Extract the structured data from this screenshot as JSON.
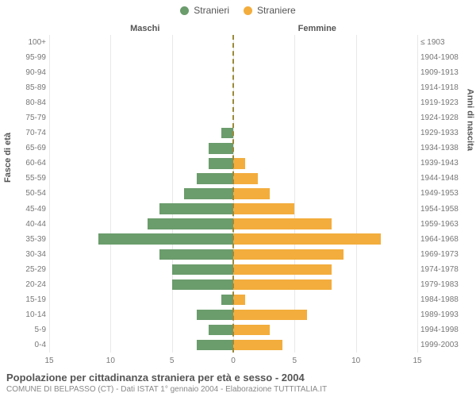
{
  "legend": {
    "male": {
      "label": "Stranieri",
      "color": "#6b9c6c"
    },
    "female": {
      "label": "Straniere",
      "color": "#f3ad3d"
    }
  },
  "side_titles": {
    "male": "Maschi",
    "female": "Femmine"
  },
  "axis_titles": {
    "left": "Fasce di età",
    "right": "Anni di nascita"
  },
  "footer": {
    "title": "Popolazione per cittadinanza straniera per età e sesso - 2004",
    "subtitle": "COMUNE DI BELPASSO (CT) - Dati ISTAT 1° gennaio 2004 - Elaborazione TUTTITALIA.IT"
  },
  "chart": {
    "type": "population-pyramid",
    "xmax": 15,
    "xticks": [
      15,
      10,
      5,
      0,
      5,
      10,
      15
    ],
    "grid_color": "#e8e8e8",
    "center_line_color": "#9a8a3a",
    "background": "#ffffff",
    "rows": [
      {
        "age": "100+",
        "year": "≤ 1903",
        "m": 0,
        "f": 0
      },
      {
        "age": "95-99",
        "year": "1904-1908",
        "m": 0,
        "f": 0
      },
      {
        "age": "90-94",
        "year": "1909-1913",
        "m": 0,
        "f": 0
      },
      {
        "age": "85-89",
        "year": "1914-1918",
        "m": 0,
        "f": 0
      },
      {
        "age": "80-84",
        "year": "1919-1923",
        "m": 0,
        "f": 0
      },
      {
        "age": "75-79",
        "year": "1924-1928",
        "m": 0,
        "f": 0
      },
      {
        "age": "70-74",
        "year": "1929-1933",
        "m": 1,
        "f": 0
      },
      {
        "age": "65-69",
        "year": "1934-1938",
        "m": 2,
        "f": 0
      },
      {
        "age": "60-64",
        "year": "1939-1943",
        "m": 2,
        "f": 1
      },
      {
        "age": "55-59",
        "year": "1944-1948",
        "m": 3,
        "f": 2
      },
      {
        "age": "50-54",
        "year": "1949-1953",
        "m": 4,
        "f": 3
      },
      {
        "age": "45-49",
        "year": "1954-1958",
        "m": 6,
        "f": 5
      },
      {
        "age": "40-44",
        "year": "1959-1963",
        "m": 7,
        "f": 8
      },
      {
        "age": "35-39",
        "year": "1964-1968",
        "m": 11,
        "f": 12
      },
      {
        "age": "30-34",
        "year": "1969-1973",
        "m": 6,
        "f": 9
      },
      {
        "age": "25-29",
        "year": "1974-1978",
        "m": 5,
        "f": 8
      },
      {
        "age": "20-24",
        "year": "1979-1983",
        "m": 5,
        "f": 8
      },
      {
        "age": "15-19",
        "year": "1984-1988",
        "m": 1,
        "f": 1
      },
      {
        "age": "10-14",
        "year": "1989-1993",
        "m": 3,
        "f": 6
      },
      {
        "age": "5-9",
        "year": "1994-1998",
        "m": 2,
        "f": 3
      },
      {
        "age": "0-4",
        "year": "1999-2003",
        "m": 3,
        "f": 4
      }
    ]
  }
}
